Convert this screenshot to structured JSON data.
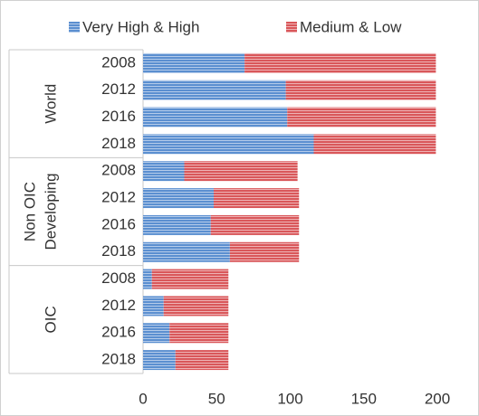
{
  "chart_data": {
    "type": "stacked-barh",
    "categories": [
      "2008",
      "2012",
      "2016",
      "2018",
      "2008",
      "2012",
      "2016",
      "2018",
      "2008",
      "2012",
      "2016",
      "2018"
    ],
    "group_labels": [
      [
        "World"
      ],
      [
        "Non OIC",
        "Developing"
      ],
      [
        "OIC"
      ]
    ],
    "series": [
      {
        "name": "Very High & High",
        "color": "#5b8fd0",
        "values": [
          69,
          97,
          98,
          116,
          28,
          48,
          46,
          59,
          6,
          14,
          18,
          22
        ]
      },
      {
        "name": "Medium & Low",
        "color": "#d9575a",
        "values": [
          130,
          102,
          101,
          83,
          77,
          58,
          60,
          47,
          52,
          44,
          40,
          36
        ]
      }
    ],
    "xlim": [
      0,
      200
    ],
    "xticks": [
      0,
      50,
      100,
      150,
      200
    ],
    "grid": false,
    "legend": "top"
  }
}
